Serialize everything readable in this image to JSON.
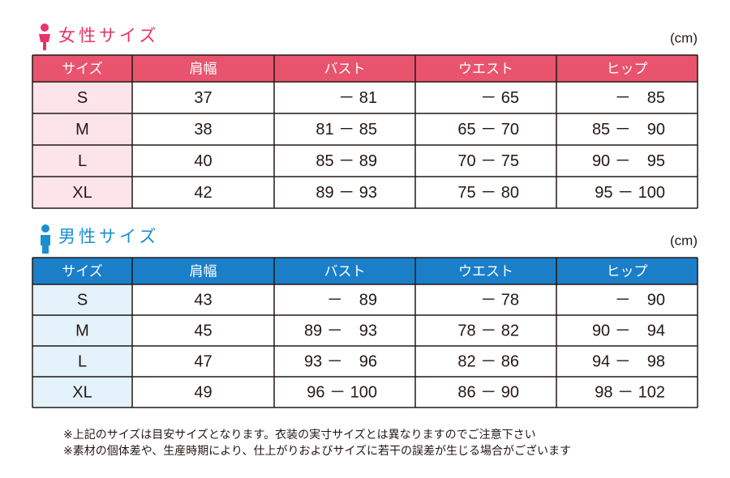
{
  "women": {
    "title": "女性サイズ",
    "unit": "(cm)",
    "headers": [
      "サイズ",
      "肩幅",
      "バスト",
      "ウエスト",
      "ヒップ"
    ],
    "rows": [
      [
        "S",
        "37",
        "－ 81",
        "－ 65",
        "－　85"
      ],
      [
        "M",
        "38",
        "81 － 85",
        "65 － 70",
        "85 －　90"
      ],
      [
        "L",
        "40",
        "85 － 89",
        "70 － 75",
        "90 －　95"
      ],
      [
        "XL",
        "42",
        "89 － 93",
        "75 － 80",
        "95 － 100"
      ]
    ]
  },
  "men": {
    "title": "男性サイズ",
    "unit": "(cm)",
    "headers": [
      "サイズ",
      "肩幅",
      "バスト",
      "ウエスト",
      "ヒップ"
    ],
    "rows": [
      [
        "S",
        "43",
        "－　89",
        "－ 78",
        "－　90"
      ],
      [
        "M",
        "45",
        "89 －　93",
        "78 － 82",
        "90 －　94"
      ],
      [
        "L",
        "47",
        "93 －　96",
        "82 － 86",
        "94 －　98"
      ],
      [
        "XL",
        "49",
        "96 － 100",
        "86 － 90",
        "98 － 102"
      ]
    ]
  },
  "notes": [
    "※上記のサイズは目安サイズとなります。衣装の実寸サイズとは異なりますのでご注意下さい",
    "※素材の個体差や、生産時期により、仕上がりおよびサイズに若干の誤差が生じる場合がございます"
  ]
}
